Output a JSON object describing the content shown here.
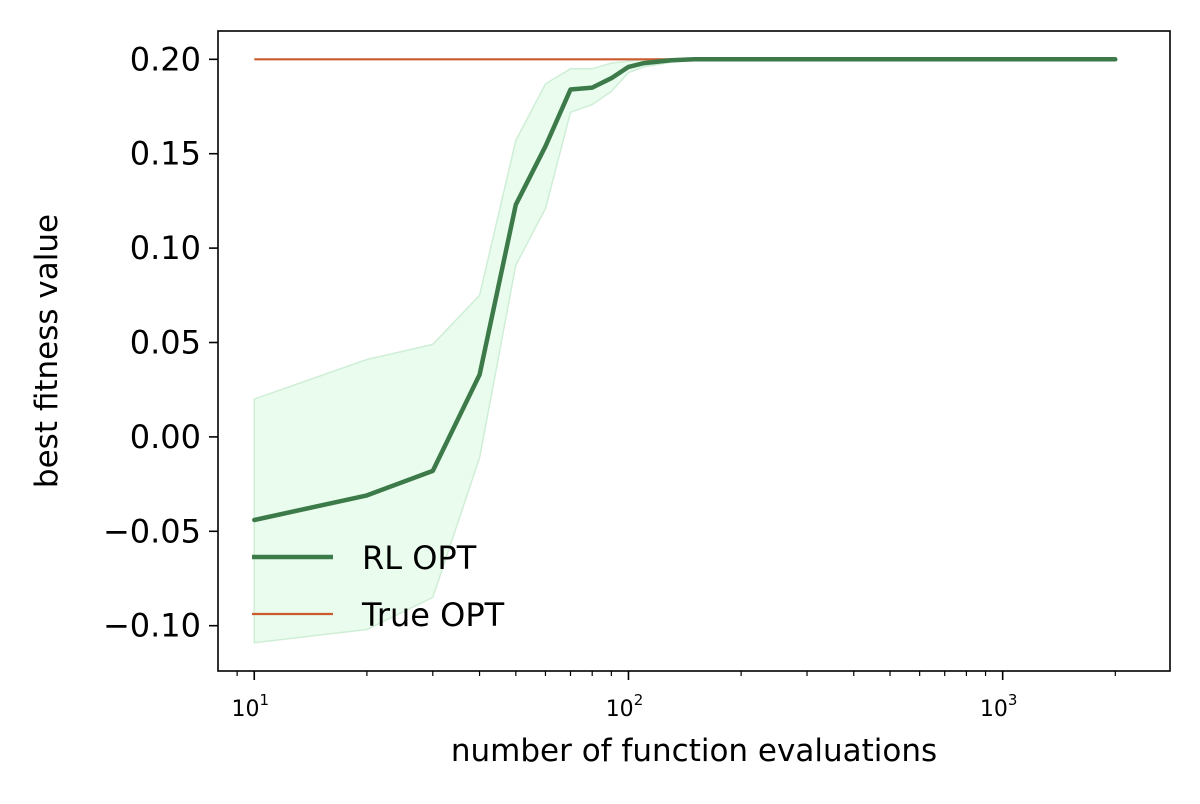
{
  "chart_data": {
    "type": "line",
    "xlabel": "number of function evaluations",
    "ylabel": "best fitness value",
    "xscale": "log",
    "xlim": [
      8.0,
      2800
    ],
    "ylim": [
      -0.124,
      0.215
    ],
    "grid": false,
    "legend_position": "lower-left",
    "yticks": [
      {
        "value": 0.2,
        "label": "0.20"
      },
      {
        "value": 0.15,
        "label": "0.15"
      },
      {
        "value": 0.1,
        "label": "0.10"
      },
      {
        "value": 0.05,
        "label": "0.05"
      },
      {
        "value": 0.0,
        "label": "0.00"
      },
      {
        "value": -0.05,
        "label": "−0.05"
      },
      {
        "value": -0.1,
        "label": "−0.10"
      }
    ],
    "xticks": [
      {
        "value": 10,
        "base": "10",
        "exp": "1"
      },
      {
        "value": 100,
        "base": "10",
        "exp": "2"
      },
      {
        "value": 1000,
        "base": "10",
        "exp": "3"
      }
    ],
    "series": [
      {
        "name": "RL OPT",
        "color": "#3d7a4a",
        "x": [
          10,
          20,
          30,
          40,
          50,
          60,
          70,
          80,
          90,
          100,
          110,
          130,
          150,
          200,
          300,
          500,
          1000,
          2000
        ],
        "y": [
          -0.044,
          -0.031,
          -0.018,
          0.033,
          0.123,
          0.154,
          0.184,
          0.185,
          0.19,
          0.196,
          0.198,
          0.1995,
          0.2,
          0.2,
          0.2,
          0.2,
          0.2,
          0.2
        ],
        "band_upper": [
          0.02,
          0.041,
          0.049,
          0.075,
          0.157,
          0.187,
          0.195,
          0.195,
          0.198,
          0.199,
          0.2,
          0.2003,
          0.2003,
          0.2003,
          0.2003,
          0.2003,
          0.2003,
          0.2003
        ],
        "band_lower": [
          -0.109,
          -0.102,
          -0.085,
          -0.011,
          0.091,
          0.121,
          0.172,
          0.176,
          0.183,
          0.193,
          0.196,
          0.1985,
          0.1995,
          0.1997,
          0.1997,
          0.1997,
          0.1997,
          0.1997
        ],
        "band_fill": "#eafcee",
        "band_edge": "#cfeed6"
      },
      {
        "name": "True OPT",
        "color": "#cc5a2e",
        "x": [
          10,
          2000
        ],
        "y": [
          0.2,
          0.2
        ]
      }
    ]
  }
}
